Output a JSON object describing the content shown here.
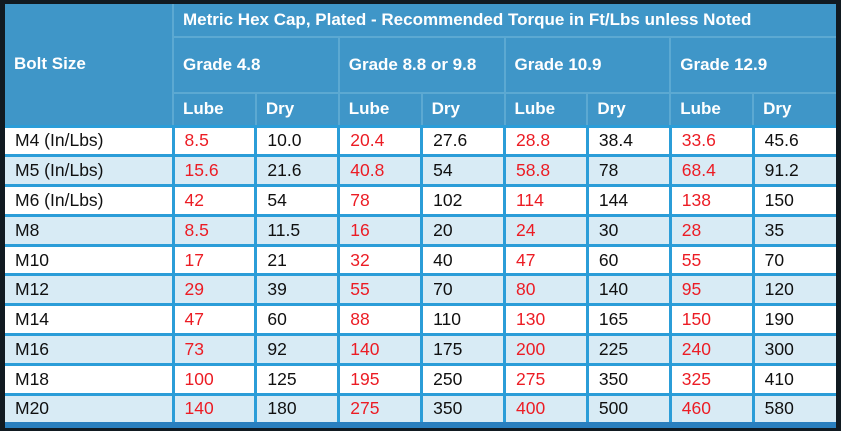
{
  "colors": {
    "header_blue": "#3F96C8",
    "row_alt": "#D8EBF5",
    "lube_red": "#EC1C24",
    "border_blue": "#2B9DD8",
    "hdr_divider": "#5CA9D2",
    "frame_dark": "#111A21",
    "bottom_band": "#2A7FBE",
    "text_dark": "#101010",
    "header_text": "#FFFFFF"
  },
  "chart_data": {
    "type": "table",
    "title": "Metric Hex Cap, Plated - Recommended Torque in Ft/Lbs unless Noted",
    "corner_header": "Bolt Size",
    "group_headers": [
      "Grade 4.8",
      "Grade 8.8 or 9.8",
      "Grade 10.9",
      "Grade 12.9"
    ],
    "sub_headers": [
      "Lube",
      "Dry",
      "Lube",
      "Dry",
      "Lube",
      "Dry",
      "Lube",
      "Dry"
    ],
    "rows": [
      {
        "size": "M4 (In/Lbs)",
        "values": [
          "8.5",
          "10.0",
          "20.4",
          "27.6",
          "28.8",
          "38.4",
          "33.6",
          "45.6"
        ]
      },
      {
        "size": "M5 (In/Lbs)",
        "values": [
          "15.6",
          "21.6",
          "40.8",
          "54",
          "58.8",
          "78",
          "68.4",
          "91.2"
        ]
      },
      {
        "size": "M6 (In/Lbs)",
        "values": [
          "42",
          "54",
          "78",
          "102",
          "114",
          "144",
          "138",
          "150"
        ]
      },
      {
        "size": "M8",
        "values": [
          "8.5",
          "11.5",
          "16",
          "20",
          "24",
          "30",
          "28",
          "35"
        ]
      },
      {
        "size": "M10",
        "values": [
          "17",
          "21",
          "32",
          "40",
          "47",
          "60",
          "55",
          "70"
        ]
      },
      {
        "size": "M12",
        "values": [
          "29",
          "39",
          "55",
          "70",
          "80",
          "140",
          "95",
          "120"
        ]
      },
      {
        "size": "M14",
        "values": [
          "47",
          "60",
          "88",
          "110",
          "130",
          "165",
          "150",
          "190"
        ]
      },
      {
        "size": "M16",
        "values": [
          "73",
          "92",
          "140",
          "175",
          "200",
          "225",
          "240",
          "300"
        ]
      },
      {
        "size": "M18",
        "values": [
          "100",
          "125",
          "195",
          "250",
          "275",
          "350",
          "325",
          "410"
        ]
      },
      {
        "size": "M20",
        "values": [
          "140",
          "180",
          "275",
          "350",
          "400",
          "500",
          "460",
          "580"
        ]
      }
    ]
  }
}
